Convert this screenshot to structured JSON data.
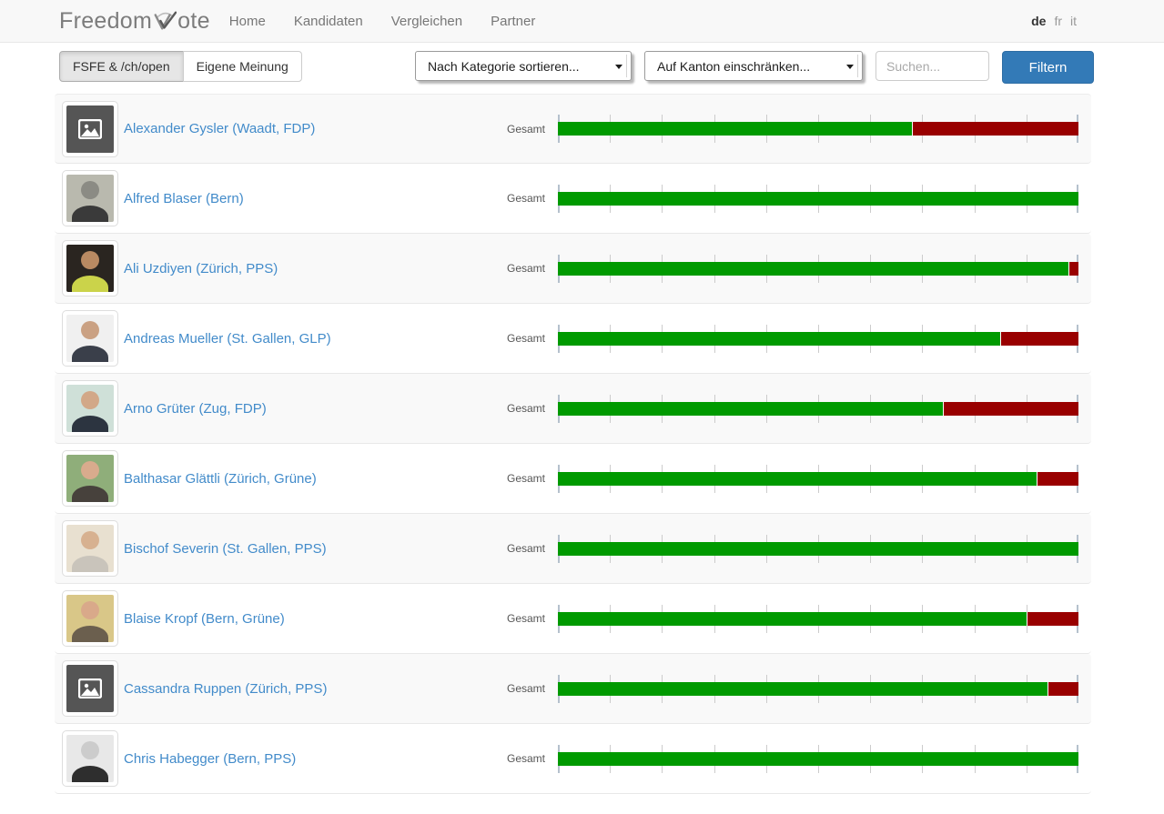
{
  "header": {
    "logo_prefix": "Freedom",
    "logo_suffix": "ote",
    "nav": [
      {
        "label": "Home"
      },
      {
        "label": "Kandidaten"
      },
      {
        "label": "Vergleichen"
      },
      {
        "label": "Partner"
      }
    ],
    "languages": [
      {
        "code": "de",
        "active": true
      },
      {
        "code": "fr",
        "active": false
      },
      {
        "code": "it",
        "active": false
      }
    ]
  },
  "filters": {
    "toggle": [
      {
        "label": "FSFE & /ch/open",
        "active": true
      },
      {
        "label": "Eigene Meinung",
        "active": false
      }
    ],
    "category_select_value": "Nach Kategorie sortieren...",
    "canton_select_value": "Auf Kanton einschränken...",
    "search_placeholder": "Suchen...",
    "submit_label": "Filtern"
  },
  "list": {
    "score_label": "Gesamt",
    "candidates": [
      {
        "name": "Alexander Gysler (Waadt, FDP)",
        "green_pct": 68,
        "photo": {
          "kind": "placeholder"
        }
      },
      {
        "name": "Alfred Blaser (Bern)",
        "green_pct": 100,
        "photo": {
          "kind": "photo",
          "bg": "#b9b9ae",
          "face": "#8b8b84",
          "body": "#3a3a3a"
        }
      },
      {
        "name": "Ali Uzdiyen (Zürich, PPS)",
        "green_pct": 98,
        "photo": {
          "kind": "photo",
          "bg": "#2a2520",
          "face": "#b98a62",
          "body": "#cbd34a"
        }
      },
      {
        "name": "Andreas Mueller (St. Gallen, GLP)",
        "green_pct": 85,
        "photo": {
          "kind": "photo",
          "bg": "#f0f0f0",
          "face": "#caa183",
          "body": "#3a3f4a"
        }
      },
      {
        "name": "Arno Grüter (Zug, FDP)",
        "green_pct": 74,
        "photo": {
          "kind": "photo",
          "bg": "#cfe0d8",
          "face": "#d2a888",
          "body": "#2c3440"
        }
      },
      {
        "name": "Balthasar Glättli (Zürich, Grüne)",
        "green_pct": 92,
        "photo": {
          "kind": "photo",
          "bg": "#8fae7a",
          "face": "#d8ab8d",
          "body": "#47413c"
        }
      },
      {
        "name": "Bischof Severin (St. Gallen, PPS)",
        "green_pct": 100,
        "photo": {
          "kind": "photo",
          "bg": "#e8e0d0",
          "face": "#d7b190",
          "body": "#c9c4bb"
        }
      },
      {
        "name": "Blaise Kropf (Bern, Grüne)",
        "green_pct": 90,
        "photo": {
          "kind": "photo",
          "bg": "#d9c788",
          "face": "#d9a98a",
          "body": "#6b5f4e"
        }
      },
      {
        "name": "Cassandra Ruppen (Zürich, PPS)",
        "green_pct": 94,
        "photo": {
          "kind": "placeholder"
        }
      },
      {
        "name": "Chris Habegger (Bern, PPS)",
        "green_pct": 100,
        "photo": {
          "kind": "photo",
          "bg": "#e8e8e8",
          "face": "#cccccc",
          "body": "#2e2e2e"
        }
      }
    ]
  },
  "colors": {
    "bar_green": "#009a00",
    "bar_red": "#990000",
    "button_blue": "#337ab7",
    "link_blue": "#428bca",
    "placeholder_gray": "#555555"
  }
}
